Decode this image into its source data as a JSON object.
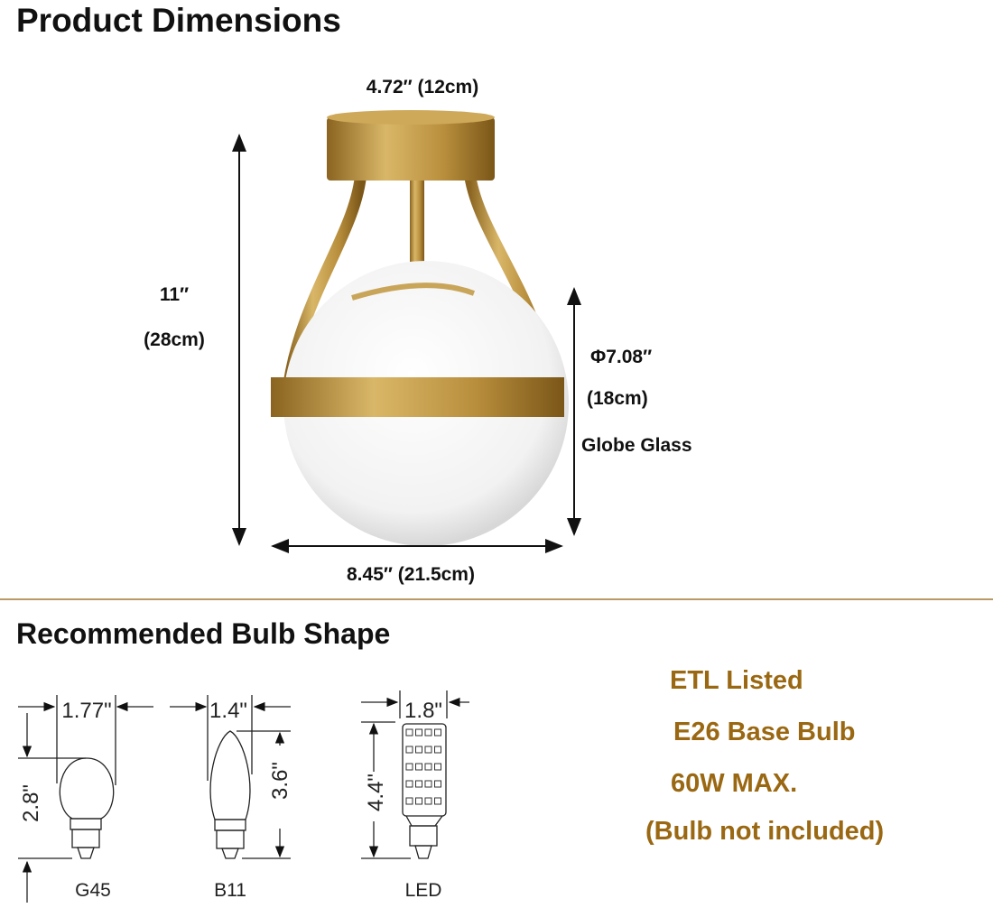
{
  "dimensions": {
    "title": "Product Dimensions",
    "canopy_width": "4.72″ (12cm)",
    "height_in": "11″",
    "height_cm": "(28cm)",
    "globe_diameter_in": "Φ7.08″",
    "globe_diameter_cm": "(18cm)",
    "globe_label": "Globe Glass",
    "overall_width": "8.45″ (21.5cm)"
  },
  "bulbs": {
    "title": "Recommended Bulb Shape",
    "items": [
      {
        "name": "G45",
        "width": "1.77\"",
        "height": "2.8\""
      },
      {
        "name": "B11",
        "width": "1.4\"",
        "height": "3.6\""
      },
      {
        "name": "LED",
        "width": "1.8\"",
        "height": "4.4\""
      }
    ]
  },
  "specs": [
    "ETL Listed",
    "E26 Base Bulb",
    "60W MAX.",
    "(Bulb not included)"
  ],
  "colors": {
    "brass": "#b8913f",
    "spec_text": "#9a6812",
    "divider": "#b89a66"
  }
}
